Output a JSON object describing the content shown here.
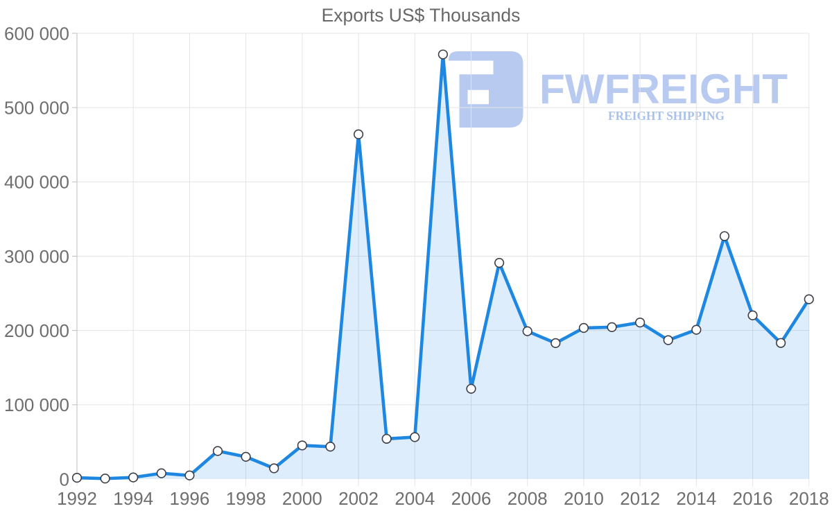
{
  "chart_data": {
    "type": "area",
    "title": "Exports US$ Thousands",
    "x": [
      1992,
      1993,
      1994,
      1995,
      1996,
      1997,
      1998,
      1999,
      2000,
      2001,
      2002,
      2003,
      2004,
      2005,
      2006,
      2007,
      2008,
      2009,
      2010,
      2011,
      2012,
      2013,
      2014,
      2015,
      2016,
      2017,
      2018
    ],
    "series": [
      {
        "name": "Exports US$ Thousands",
        "values": [
          1800,
          700,
          2200,
          7800,
          4900,
          37800,
          30000,
          14500,
          45300,
          43600,
          464000,
          54200,
          56500,
          571500,
          121500,
          291000,
          199000,
          183000,
          203400,
          204500,
          210700,
          187000,
          201000,
          327000,
          220300,
          183200,
          242000
        ]
      }
    ],
    "xlabel": "",
    "ylabel": "",
    "xlim": [
      1992,
      2018
    ],
    "ylim": [
      0,
      600000
    ],
    "x_tick_labels": [
      "1992",
      "1994",
      "1996",
      "1998",
      "2000",
      "2002",
      "2004",
      "2006",
      "2008",
      "2010",
      "2012",
      "2014",
      "2016",
      "2018"
    ],
    "x_tick_years": [
      1992,
      1994,
      1996,
      1998,
      2000,
      2002,
      2004,
      2006,
      2008,
      2010,
      2012,
      2014,
      2016,
      2018
    ],
    "y_tick_values": [
      0,
      100000,
      200000,
      300000,
      400000,
      500000,
      600000
    ],
    "y_tick_labels": [
      "0",
      "100 000",
      "200 000",
      "300 000",
      "400 000",
      "500 000",
      "600 000"
    ],
    "grid": true,
    "legend": "none",
    "colors": {
      "line": "#1e87e2",
      "area_fill": "rgba(30,135,226,0.15)",
      "marker_fill": "#ffffff",
      "marker_stroke": "#3d3d46",
      "gridline": "#e4e4e4",
      "axis": "#bdbdbd",
      "tick_label": "#6e6e6e",
      "title": "#686868"
    }
  },
  "watermark": {
    "brand": "FWFREIGHT",
    "tagline": "FREIGHT SHIPPING",
    "icon": "fwfreight-f-logo-icon",
    "brand_color": "#b8caef",
    "tagline_color": "#a8c2ea"
  }
}
